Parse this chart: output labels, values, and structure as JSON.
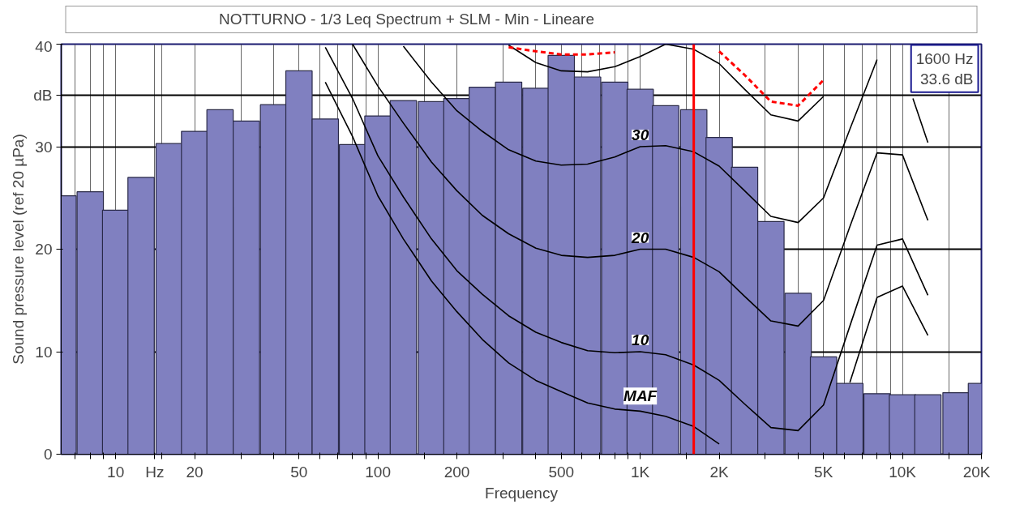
{
  "chart_data": {
    "type": "bar",
    "xlabel": "Frequency",
    "ylabel": "Sound pressure level (ref 20 µPa)",
    "log": "x",
    "grid": true,
    "legend": "top",
    "xlim": [
      6.2,
      20000
    ],
    "ylim": [
      0,
      40
    ],
    "xticks": [
      {
        "value": 7,
        "label": null
      },
      {
        "value": 8,
        "label": null
      },
      {
        "value": 9,
        "label": null
      },
      10,
      {
        "value": 14.1,
        "label": "Hz"
      },
      {
        "value": 15,
        "label": null
      },
      20,
      {
        "value": 30,
        "label": null
      },
      {
        "value": 40,
        "label": null
      },
      50,
      {
        "value": 60,
        "label": null
      },
      {
        "value": 70,
        "label": null
      },
      {
        "value": 80,
        "label": null
      },
      {
        "value": 90,
        "label": null
      },
      100,
      {
        "value": 150,
        "label": null
      },
      200,
      {
        "value": 300,
        "label": null
      },
      {
        "value": 400,
        "label": null
      },
      500,
      {
        "value": 600,
        "label": null
      },
      {
        "value": 700,
        "label": null
      },
      {
        "value": 800,
        "label": null
      },
      {
        "value": 900,
        "label": null
      },
      {
        "value": 1000,
        "label": "1K"
      },
      {
        "value": 1500,
        "label": null
      },
      {
        "value": 2000,
        "label": "2K"
      },
      {
        "value": 3000,
        "label": null
      },
      {
        "value": 4000,
        "label": null
      },
      {
        "value": 5000,
        "label": "5K"
      },
      {
        "value": 6000,
        "label": null
      },
      {
        "value": 7000,
        "label": null
      },
      {
        "value": 8000,
        "label": null
      },
      {
        "value": 9000,
        "label": null
      },
      {
        "value": 10000,
        "label": "10K"
      },
      {
        "value": 15000,
        "label": null
      },
      {
        "value": 20000,
        "label": "20K"
      }
    ],
    "yticks": [
      0,
      10,
      20,
      30,
      {
        "value": 35,
        "label": "dB"
      },
      40
    ],
    "ref_lines": [
      {
        "axis": "x",
        "value": 1600,
        "color": "#ff0000"
      }
    ],
    "annotations": [
      "1600 Hz\n33.6 dB"
    ],
    "series": [
      {
        "name": "NOTTURNO - 1/3 Leq Spectrum + SLM - Min - Lineare",
        "color": "#8080c0",
        "x": [
          6.3,
          8,
          10,
          12.5,
          16,
          20,
          25,
          31.5,
          40,
          50,
          63,
          80,
          100,
          125,
          160,
          200,
          250,
          315,
          400,
          500,
          630,
          800,
          1000,
          1250,
          1600,
          2000,
          2500,
          3150,
          4000,
          5000,
          6300,
          8000,
          10000,
          12500,
          16000,
          20000
        ],
        "values": [
          25.2,
          25.6,
          23.8,
          27.0,
          30.3,
          31.5,
          33.6,
          32.5,
          34.1,
          37.4,
          32.7,
          30.2,
          33.0,
          34.5,
          34.4,
          34.7,
          35.8,
          36.3,
          35.7,
          38.9,
          36.8,
          36.3,
          35.6,
          34.0,
          33.6,
          30.9,
          28.0,
          22.7,
          15.7,
          9.5,
          6.9,
          5.9,
          5.8,
          5.8,
          6.0,
          6.9
        ]
      },
      {
        "type": "line",
        "color": "#000000",
        "x": [
          315,
          400,
          500,
          630,
          800,
          1000,
          1250,
          1600,
          2000,
          2500,
          3150,
          4000,
          5000
        ],
        "values": [
          39.9,
          38.2,
          37.4,
          37.3,
          37.8,
          38.8,
          40.0,
          39.5,
          38.1,
          35.6,
          33.1,
          32.5,
          34.9
        ]
      },
      {
        "name": "30",
        "type": "line",
        "color": "#000000",
        "x": [
          125,
          160,
          200,
          250,
          315,
          400,
          500,
          630,
          800,
          1000,
          1250,
          1600,
          2000,
          2500,
          3150,
          4000,
          5000,
          6300,
          8000,
          10000,
          10960,
          12500
        ],
        "values": [
          39.8,
          36.3,
          33.5,
          31.5,
          29.7,
          28.6,
          28.2,
          28.3,
          29.0,
          30.0,
          30.1,
          29.5,
          28.1,
          25.7,
          23.2,
          22.6,
          25.0,
          31.7,
          38.5,
          null,
          34.7,
          30.4
        ]
      },
      {
        "name": "20",
        "type": "line",
        "color": "#000000",
        "x": [
          80,
          100,
          125,
          160,
          200,
          250,
          315,
          400,
          500,
          630,
          800,
          1000,
          1250,
          1600,
          2000,
          2500,
          3150,
          4000,
          5000,
          6300,
          8000,
          10000,
          12500
        ],
        "values": [
          40.0,
          35.9,
          32.3,
          28.5,
          25.7,
          23.3,
          21.5,
          20.1,
          19.4,
          19.2,
          19.4,
          20.0,
          20.0,
          19.2,
          17.8,
          15.4,
          13.0,
          12.5,
          15.0,
          22.2,
          29.4,
          29.2,
          22.8
        ]
      },
      {
        "name": "10",
        "type": "line",
        "color": "#000000",
        "x": [
          63,
          80,
          100,
          125,
          160,
          200,
          250,
          315,
          400,
          500,
          630,
          800,
          1000,
          1250,
          1600,
          2000,
          2500,
          3150,
          4000,
          5000,
          6300,
          8000,
          10000,
          12500
        ],
        "values": [
          39.7,
          34.7,
          29.1,
          25.1,
          21.0,
          17.9,
          15.6,
          13.5,
          11.9,
          10.9,
          10.1,
          9.9,
          10.0,
          9.7,
          8.7,
          7.2,
          4.9,
          2.6,
          2.3,
          4.8,
          12.5,
          20.4,
          21.0,
          15.5
        ]
      },
      {
        "name": "MAF",
        "type": "line",
        "color": "#000000",
        "x": [
          63,
          80,
          100,
          125,
          160,
          200,
          250,
          315,
          400,
          500,
          630,
          800,
          1000,
          1250,
          1600,
          2000,
          2500,
          3150,
          4000,
          5000,
          6300,
          8000,
          10000,
          12500
        ],
        "values": [
          36.3,
          31.0,
          25.2,
          21.0,
          16.9,
          13.9,
          11.2,
          8.9,
          7.2,
          6.1,
          5.0,
          4.4,
          4.2,
          3.7,
          2.7,
          1.0,
          null,
          null,
          null,
          null,
          7.0,
          15.3,
          16.4,
          11.6
        ]
      },
      {
        "type": "line",
        "color": "#ff0000",
        "line_style": "dashed",
        "x": [
          315,
          400,
          500,
          630,
          800,
          1000,
          1250,
          1600,
          2000,
          2500,
          3150,
          4000,
          5000
        ],
        "values": [
          39.7,
          39.3,
          39.0,
          39.0,
          39.2,
          null,
          null,
          null,
          39.3,
          37.0,
          34.4,
          34.0,
          36.5
        ]
      }
    ]
  }
}
